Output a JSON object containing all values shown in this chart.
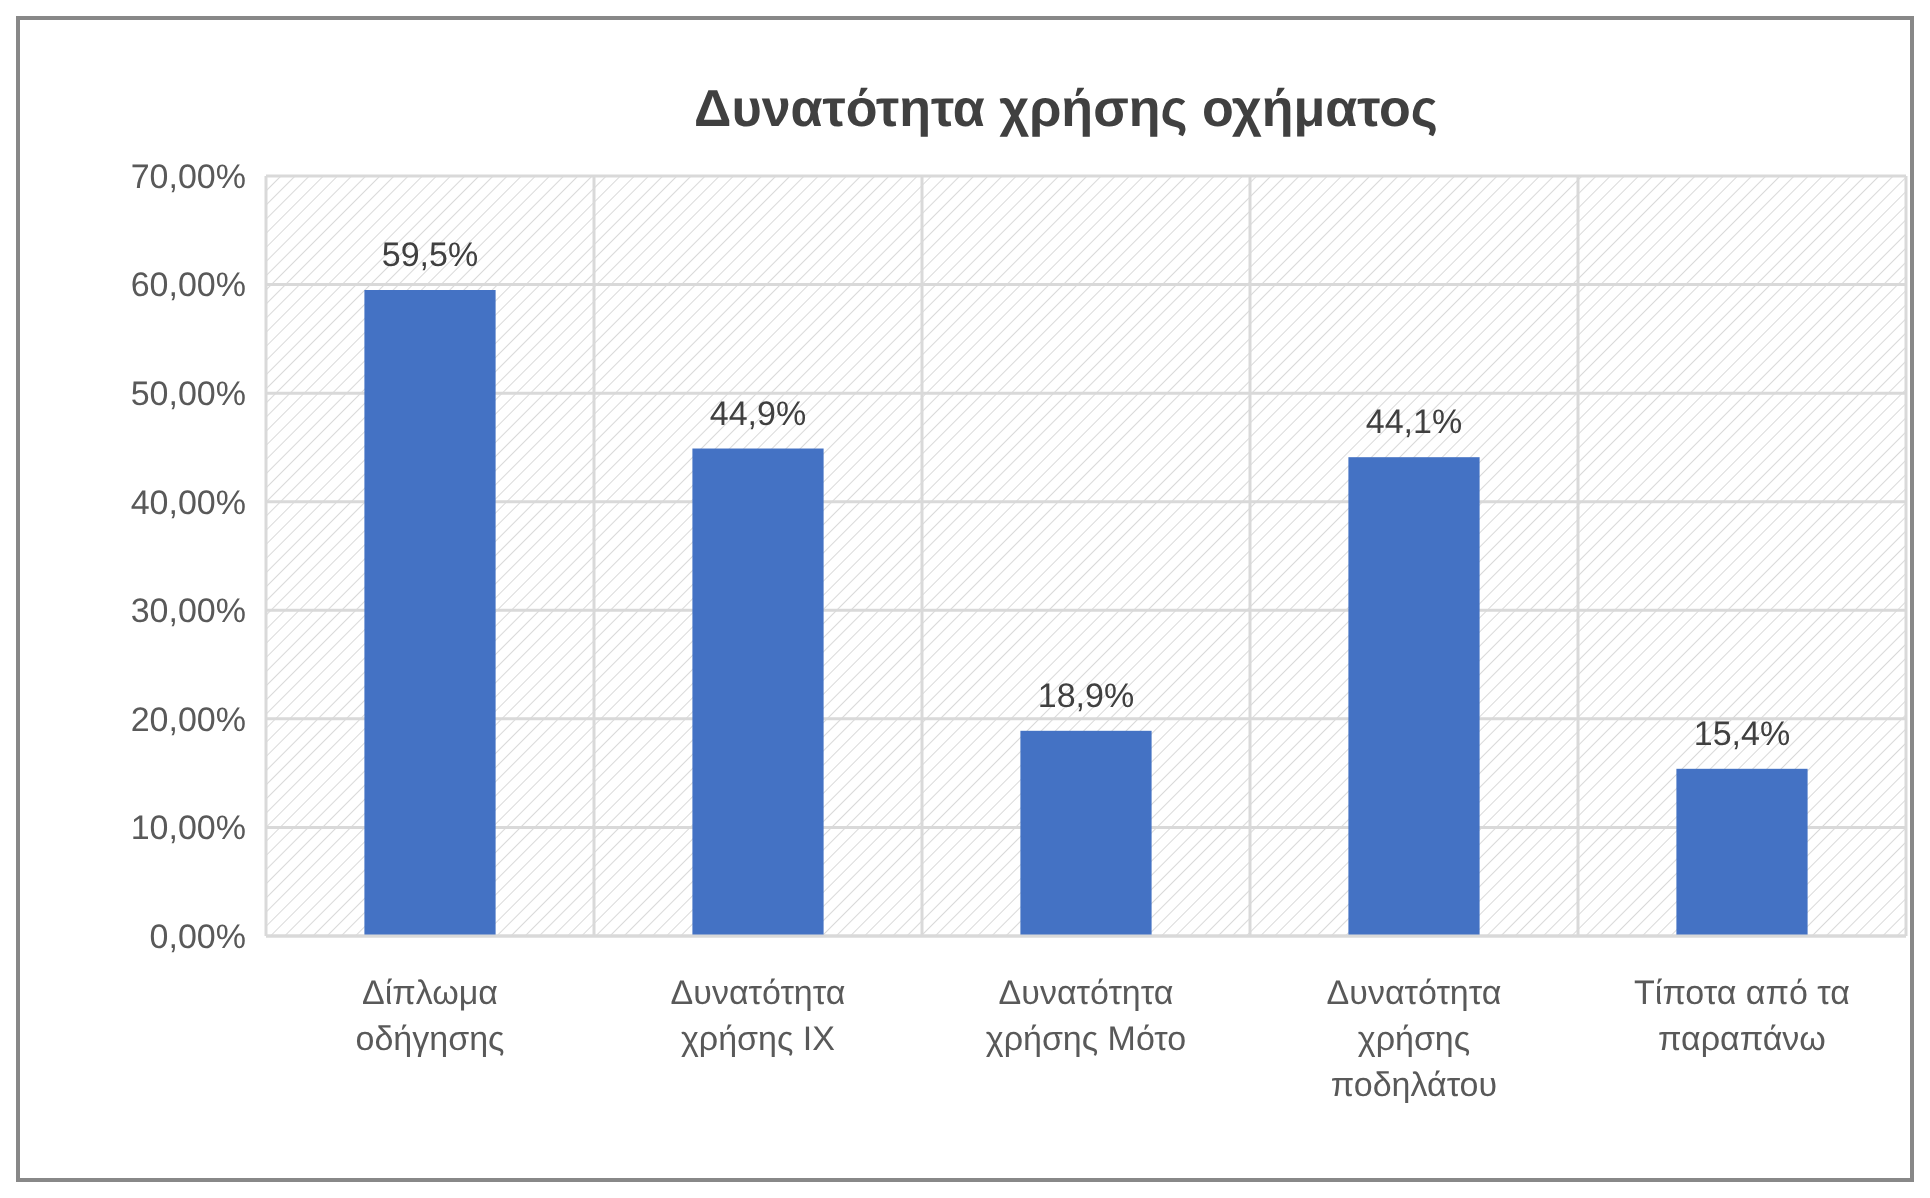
{
  "chart_data": {
    "type": "bar",
    "title": "Δυνατότητα χρήσης οχήματος",
    "categories": [
      "Δίπλωμα οδήγησης",
      "Δυνατότητα χρήσης ΙΧ",
      "Δυνατότητα χρήσης Μότο",
      "Δυνατότητα χρήσης ποδηλάτου",
      "Τίποτα από τα παραπάνω"
    ],
    "values": [
      59.5,
      44.9,
      18.9,
      44.1,
      15.4
    ],
    "value_labels": [
      "59,5%",
      "44,9%",
      "18,9%",
      "44,1%",
      "15,4%"
    ],
    "color": "#4472c4",
    "ylim": [
      0,
      70
    ],
    "yticks": [
      {
        "value": 0,
        "label": "0,00%"
      },
      {
        "value": 10,
        "label": "10,00%"
      },
      {
        "value": 20,
        "label": "20,00%"
      },
      {
        "value": 30,
        "label": "30,00%"
      },
      {
        "value": 40,
        "label": "40,00%"
      },
      {
        "value": 50,
        "label": "50,00%"
      },
      {
        "value": 60,
        "label": "60,00%"
      },
      {
        "value": 70,
        "label": "70,00%"
      }
    ],
    "grid": true
  }
}
